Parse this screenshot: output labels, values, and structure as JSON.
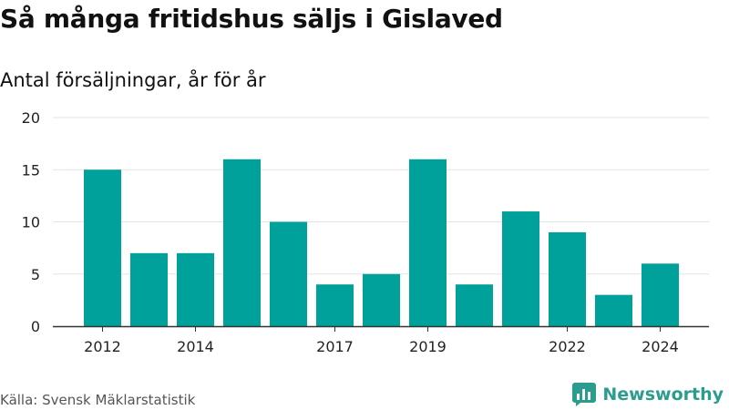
{
  "title": "Så många fritidshus säljs i Gislaved",
  "subtitle": "Antal försäljningar, år för år",
  "source": "Källa: Svensk Mäklarstatistik",
  "brand": {
    "name": "Newsworthy",
    "icon": "bar-chart-logo-icon",
    "color": "#2a9d8f"
  },
  "chart_data": {
    "type": "bar",
    "categories": [
      "2012",
      "2013",
      "2014",
      "2015",
      "2016",
      "2017",
      "2018",
      "2019",
      "2020",
      "2021",
      "2022",
      "2023",
      "2024"
    ],
    "x_tick_labels": [
      "2012",
      "",
      "2014",
      "",
      "",
      "2017",
      "",
      "2019",
      "",
      "",
      "2022",
      "",
      "2024"
    ],
    "values": [
      15,
      7,
      7,
      16,
      10,
      4,
      5,
      16,
      4,
      11,
      9,
      3,
      6
    ],
    "yticks": [
      0,
      5,
      10,
      15,
      20
    ],
    "ylim": [
      0,
      20
    ],
    "xlabel": "",
    "ylabel": "",
    "grid": true,
    "bar_color": "#00a19a"
  }
}
